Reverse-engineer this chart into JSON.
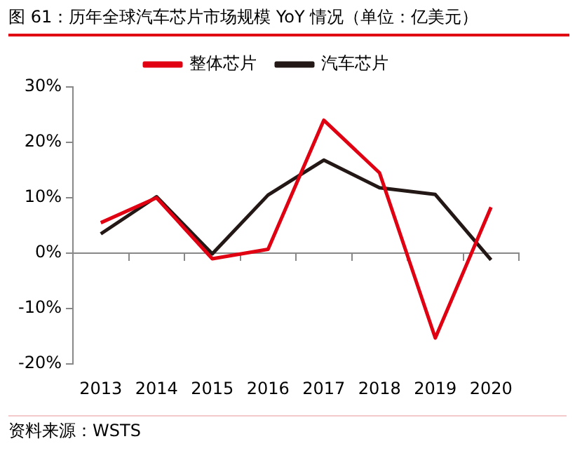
{
  "chart_data": {
    "type": "line",
    "title": "图 61：历年全球汽车芯片市场规模 YoY 情况（单位：亿美元）",
    "categories": [
      "2013",
      "2014",
      "2015",
      "2016",
      "2017",
      "2018",
      "2019",
      "2020"
    ],
    "series": [
      {
        "name": "整体芯片",
        "color": "#e00012",
        "values": [
          5.5,
          10,
          -1,
          0.7,
          24,
          14.5,
          -15.3,
          8.3
        ]
      },
      {
        "name": "汽车芯片",
        "color": "#231815",
        "values": [
          3.5,
          10.2,
          -0.1,
          10.5,
          16.8,
          11.8,
          10.6,
          -1.2
        ]
      }
    ],
    "ylim": [
      -20,
      30
    ],
    "yticks": [
      {
        "value": -20,
        "label": "-20%"
      },
      {
        "value": -10,
        "label": "-10%"
      },
      {
        "value": 0,
        "label": "0%"
      },
      {
        "value": 10,
        "label": "10%"
      },
      {
        "value": 20,
        "label": "20%"
      },
      {
        "value": 30,
        "label": "30%"
      }
    ],
    "legend": "top",
    "marker": "none",
    "line_style": "solid",
    "annotations": [
      "资料来源：WSTS"
    ]
  }
}
